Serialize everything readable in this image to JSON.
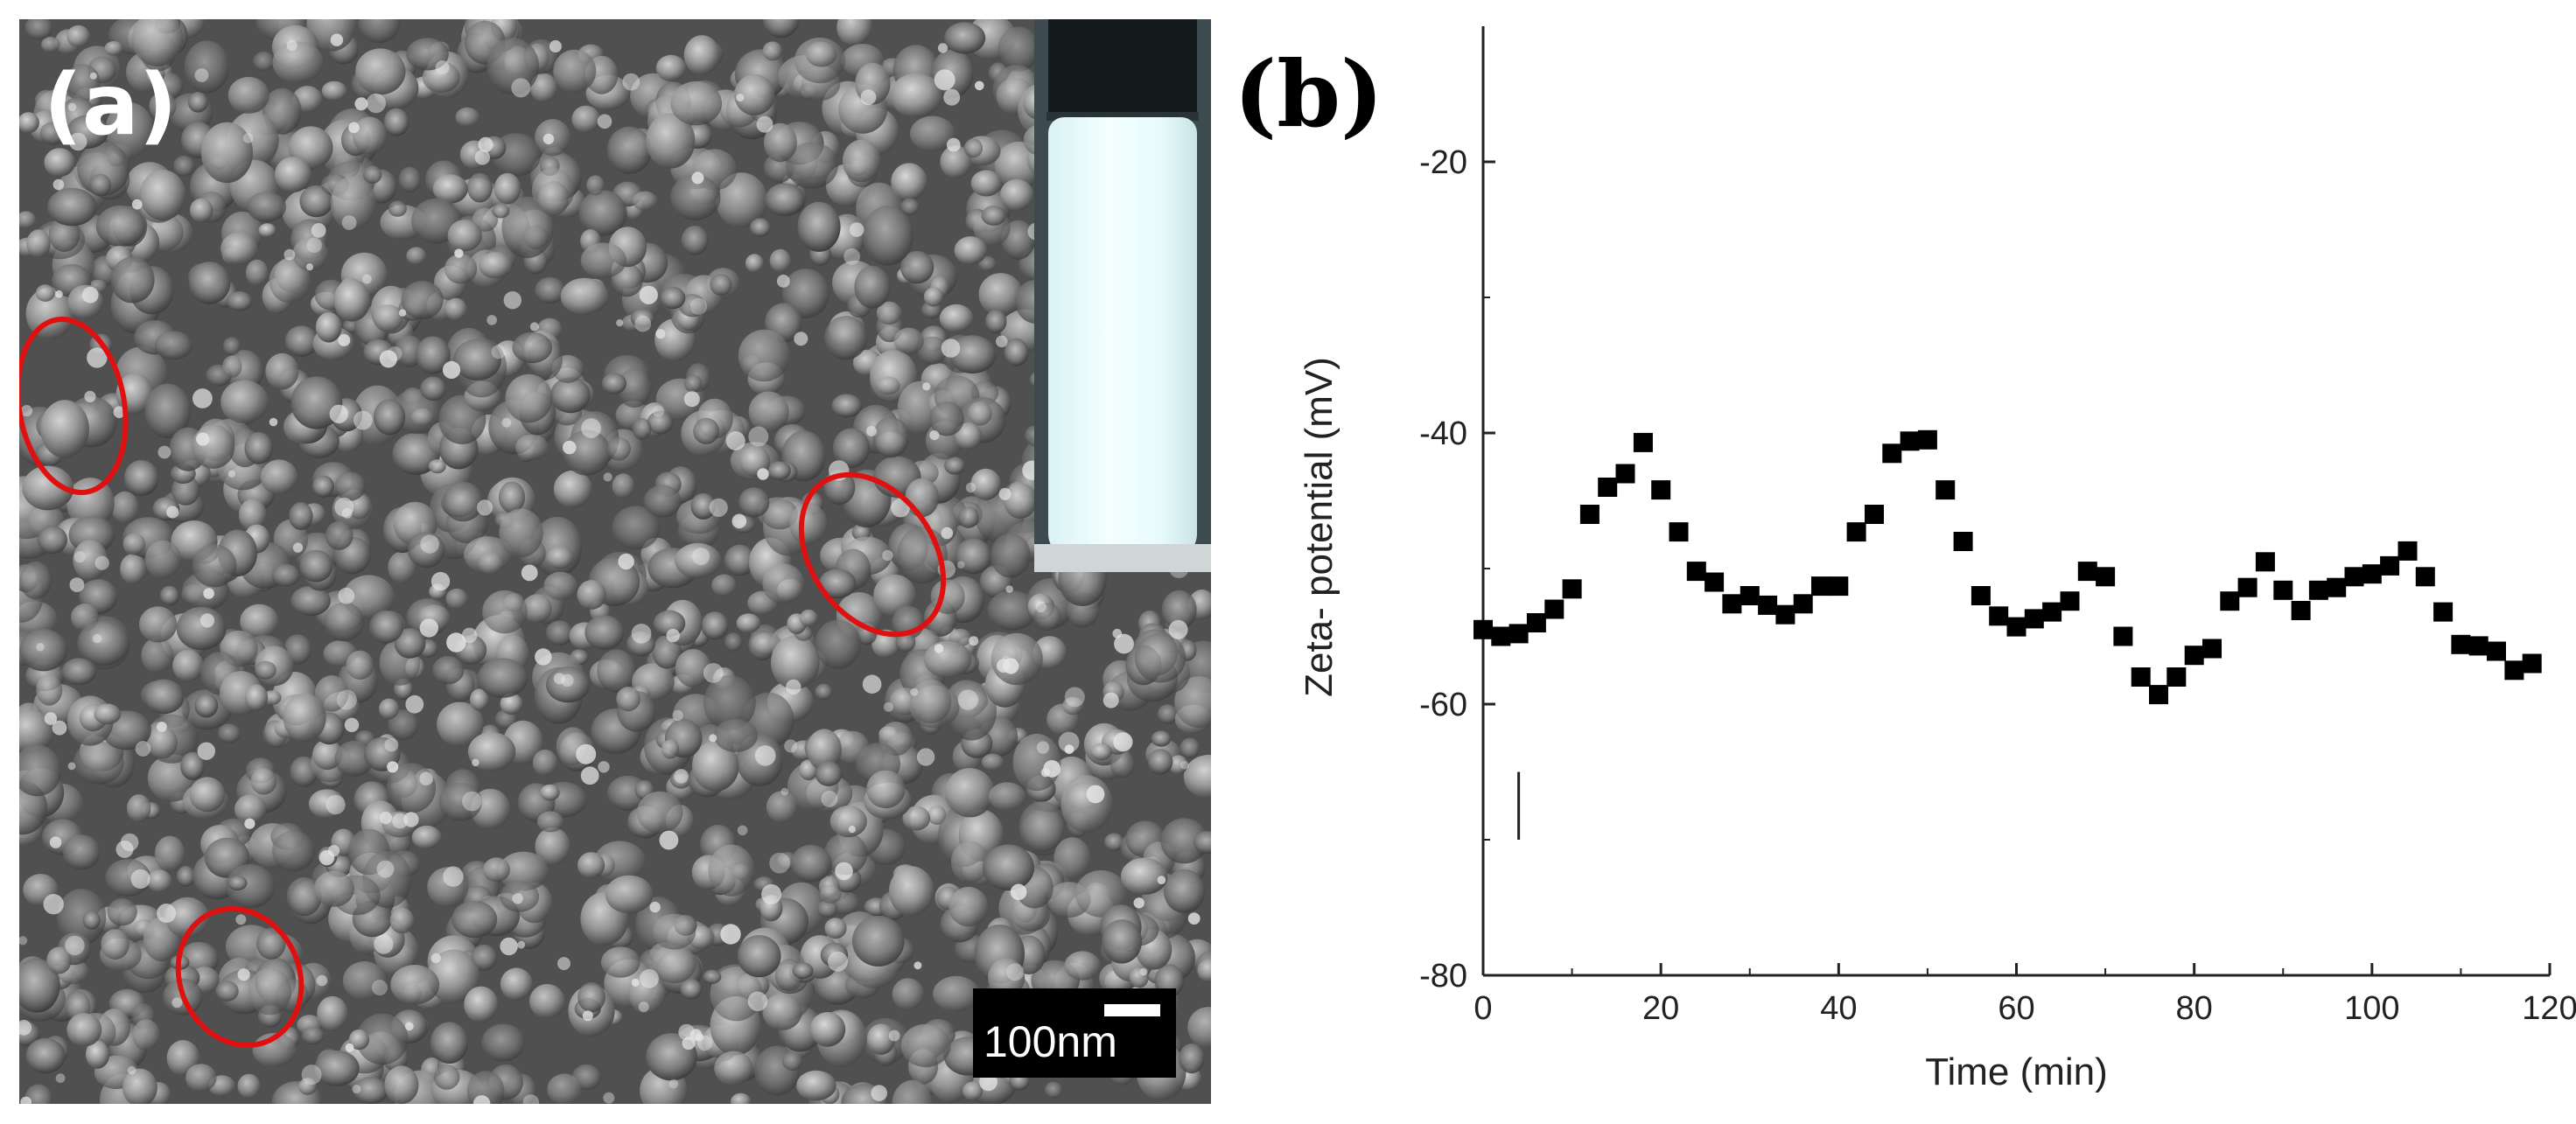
{
  "panel_a": {
    "label": "(a)",
    "scale_bar_label": "100nm"
  },
  "panel_b": {
    "label": "(b)"
  },
  "chart_data": {
    "type": "scatter",
    "title": "",
    "xlabel": "Time (min)",
    "ylabel": "Zeta- potential (mV)",
    "xlim": [
      0,
      120
    ],
    "ylim": [
      -80,
      -10
    ],
    "xticks": [
      0,
      20,
      40,
      60,
      80,
      100,
      120
    ],
    "yticks": [
      -20,
      -40,
      -60,
      -80
    ],
    "grid": false,
    "marker": "square",
    "marker_color": "#000000",
    "annotation": {
      "type": "vertical-line",
      "x": 4,
      "y_range": [
        -70,
        -65
      ]
    },
    "x": [
      0,
      2,
      4,
      6,
      8,
      10,
      12,
      14,
      16,
      18,
      20,
      22,
      24,
      26,
      28,
      30,
      32,
      34,
      36,
      38,
      40,
      42,
      44,
      46,
      48,
      50,
      52,
      54,
      56,
      58,
      60,
      62,
      64,
      66,
      68,
      70,
      72,
      74,
      76,
      78,
      80,
      82,
      84,
      86,
      88,
      90,
      92,
      94,
      96,
      98,
      100,
      102,
      104,
      106,
      108,
      110,
      112,
      114,
      116,
      118
    ],
    "y": [
      -54.5,
      -55,
      -54.8,
      -54,
      -53,
      -51.5,
      -46,
      -44,
      -43,
      -40.7,
      -44.2,
      -47.3,
      -50.2,
      -51,
      -52.6,
      -52,
      -52.7,
      -53.4,
      -52.6,
      -51.3,
      -51.3,
      -47.3,
      -46,
      -41.5,
      -40.6,
      -40.5,
      -44.2,
      -48,
      -52,
      -53.5,
      -54.3,
      -53.7,
      -53.2,
      -52.4,
      -50.2,
      -50.6,
      -55,
      -58,
      -59.3,
      -58,
      -56.4,
      -55.9,
      -52.4,
      -51.4,
      -49.5,
      -51.6,
      -53.1,
      -51.6,
      -51.4,
      -50.6,
      -50.4,
      -49.8,
      -48.7,
      -50.6,
      -53.2,
      -55.6,
      -55.7,
      -56.1,
      -57.5,
      -57
    ]
  }
}
